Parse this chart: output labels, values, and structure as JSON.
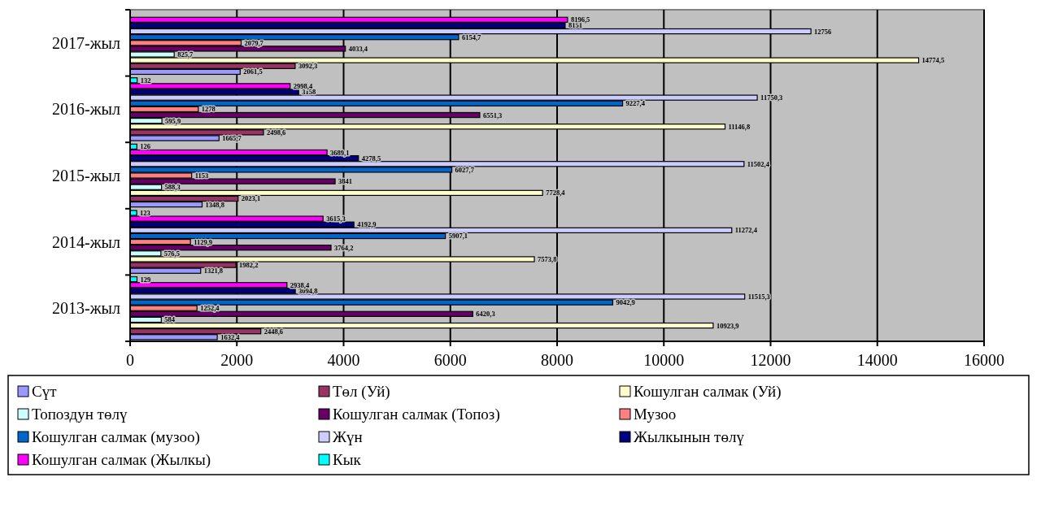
{
  "chart_data": {
    "type": "bar",
    "orientation": "horizontal",
    "categories": [
      "2017-жыл",
      "2016-жыл",
      "2015-жыл",
      "2014-жыл",
      "2013-жыл"
    ],
    "xlim": [
      0,
      16000
    ],
    "xticks": [
      0,
      2000,
      4000,
      6000,
      8000,
      10000,
      12000,
      14000,
      16000
    ],
    "grid": "x",
    "legend": "bottom",
    "series": [
      {
        "name": "Сүт",
        "color": "#9999ff",
        "values": [
          2061.5,
          1665.7,
          1348.8,
          1321.8,
          1632.4
        ],
        "value_labels": [
          "2061,5",
          "1665,7",
          "1348,8",
          "1321,8",
          "1632,4"
        ]
      },
      {
        "name": "Төл (Уй)",
        "color": "#993366",
        "values": [
          3092.3,
          2498.6,
          2023.1,
          1982.2,
          2448.6
        ],
        "value_labels": [
          "3092,3",
          "2498,6",
          "2023,1",
          "1982,2",
          "2448,6"
        ]
      },
      {
        "name": "Кошулган салмак (Уй)",
        "color": "#ffffcc",
        "values": [
          14774.5,
          11146.8,
          7728.4,
          7573.8,
          10923.9
        ],
        "value_labels": [
          "14774,5",
          "11146,8",
          "7728,4",
          "7573,8",
          "10923,9"
        ]
      },
      {
        "name": "Топоздун төлү",
        "color": "#ccffff",
        "values": [
          825.7,
          595.9,
          588.3,
          576.5,
          584
        ],
        "value_labels": [
          "825,7",
          "595,9",
          "588,3",
          "576,5",
          "584"
        ]
      },
      {
        "name": "Кошулган салмак (Топоз)",
        "color": "#660066",
        "values": [
          4033.4,
          6551.3,
          3841,
          3764.2,
          6420.3
        ],
        "value_labels": [
          "4033,4",
          "6551,3",
          "3841",
          "3764,2",
          "6420,3"
        ]
      },
      {
        "name": "Музоо",
        "color": "#ff8080",
        "values": [
          2079.7,
          1278,
          1153,
          1129.9,
          1252.4
        ],
        "value_labels": [
          "2079,7",
          "1278",
          "1153",
          "1129,9",
          "1252,4"
        ]
      },
      {
        "name": "Кошулган салмак (музоо)",
        "color": "#0066cc",
        "values": [
          6154.7,
          9227.4,
          6027.7,
          5907.1,
          9042.9
        ],
        "value_labels": [
          "6154,7",
          "9227,4",
          "6027,7",
          "5907,1",
          "9042,9"
        ]
      },
      {
        "name": "Жүн",
        "color": "#ccccff",
        "values": [
          12756,
          11750.3,
          11502.4,
          11272.4,
          11515.3
        ],
        "value_labels": [
          "12756",
          "11750,3",
          "11502,4",
          "11272,4",
          "11515,3"
        ]
      },
      {
        "name": "Жылкынын төлү",
        "color": "#000080",
        "values": [
          8151,
          3158,
          4278.5,
          4192.9,
          3094.8
        ],
        "value_labels": [
          "8151",
          "3158",
          "4278,5",
          "4192,9",
          "3094,8"
        ]
      },
      {
        "name": "Кошулган салмак (Жылкы)",
        "color": "#ff00ff",
        "values": [
          8196.5,
          2998.4,
          3689.1,
          3615.3,
          2938.4
        ],
        "value_labels": [
          "8196,5",
          "2998,4",
          "3689,1",
          "3615,3",
          "2938,4"
        ]
      },
      {
        "name": "Кык",
        "color": "#00ffff",
        "values": [
          null,
          132,
          126,
          123,
          129
        ],
        "value_labels": [
          null,
          "132",
          "126",
          "123",
          "129"
        ]
      }
    ]
  }
}
